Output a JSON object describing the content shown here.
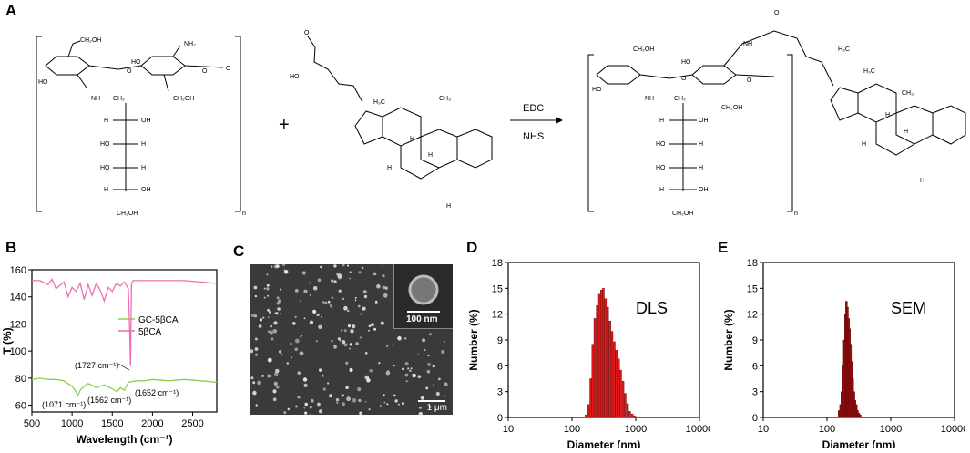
{
  "panels": {
    "A": "A",
    "B": "B",
    "C": "C",
    "D": "D",
    "E": "E"
  },
  "scheme": {
    "reaction_plus": "+",
    "reagent_top": "EDC",
    "reagent_bottom": "NHS",
    "subscript_n": "n",
    "labels": {
      "ch2oh": "CH₂OH",
      "nh2": "NH₂",
      "ho": "HO",
      "oh": "OH",
      "nh": "NH",
      "ch2": "CH₂",
      "h": "H",
      "o": "O",
      "ch3": "CH₃",
      "h3c": "H₃C"
    }
  },
  "sem": {
    "inset_scale": "100 nm",
    "main_scale": "1 μm"
  },
  "chart_data": [
    {
      "type": "line",
      "panel": "B",
      "xlabel": "Wavelength (cm⁻¹)",
      "ylabel": "T (%)",
      "xlim": [
        500,
        2800
      ],
      "ylim": [
        55,
        160
      ],
      "xticks": [
        500,
        1000,
        1500,
        2000,
        2500
      ],
      "yticks": [
        60,
        70,
        80,
        90,
        100,
        110,
        120,
        130,
        140,
        150,
        160
      ],
      "legend_position": "center-right",
      "annotations": [
        "(1727 cm⁻¹)",
        "(1071 cm⁻¹)",
        "(1562 cm⁻¹)",
        "(1652 cm⁻¹)"
      ],
      "series": [
        {
          "name": "GC-5βCA",
          "color": "#8fd14f",
          "x": [
            500,
            600,
            700,
            800,
            900,
            1000,
            1050,
            1071,
            1100,
            1150,
            1200,
            1300,
            1400,
            1500,
            1562,
            1600,
            1652,
            1700,
            1800,
            1900,
            2000,
            2200,
            2400,
            2600,
            2800
          ],
          "y": [
            79,
            80,
            79,
            79,
            78,
            74,
            70,
            67,
            71,
            74,
            76,
            73,
            75,
            72,
            70,
            73,
            71,
            77,
            78,
            78,
            79,
            78,
            79,
            78,
            77
          ]
        },
        {
          "name": "5βCA",
          "color": "#ee6fb1",
          "x": [
            500,
            600,
            700,
            750,
            800,
            900,
            950,
            1000,
            1050,
            1100,
            1150,
            1200,
            1250,
            1300,
            1350,
            1400,
            1450,
            1500,
            1550,
            1600,
            1650,
            1700,
            1715,
            1727,
            1740,
            1760,
            1800,
            1900,
            2000,
            2200,
            2400,
            2600,
            2800
          ],
          "y": [
            152,
            152,
            149,
            153,
            146,
            151,
            140,
            147,
            144,
            150,
            138,
            149,
            141,
            150,
            145,
            137,
            147,
            144,
            150,
            148,
            151,
            146,
            120,
            89,
            150,
            152,
            152,
            152,
            152,
            152,
            152,
            151,
            150
          ]
        }
      ]
    },
    {
      "type": "bar",
      "panel": "D",
      "title": "DLS",
      "xlabel": "Diameter (nm)",
      "ylabel": "Number (%)",
      "xscale": "log",
      "xlim": [
        10,
        10000
      ],
      "ylim": [
        0,
        18
      ],
      "xticks": [
        10,
        100,
        1000,
        10000
      ],
      "yticks": [
        0,
        3,
        6,
        9,
        12,
        15,
        18
      ],
      "color": "#e01b1b",
      "x": [
        160,
        175,
        190,
        205,
        220,
        240,
        260,
        280,
        300,
        325,
        350,
        380,
        410,
        445,
        480,
        520,
        560,
        610,
        660,
        720,
        780,
        850,
        920,
        1000,
        1100
      ],
      "values": [
        0.3,
        1.5,
        4.5,
        8.5,
        11.5,
        13.0,
        14.3,
        14.8,
        15.0,
        13.8,
        12.8,
        11.2,
        10.0,
        8.8,
        7.8,
        6.8,
        5.5,
        4.2,
        2.8,
        1.6,
        0.7,
        0.4,
        0.2,
        0.1,
        0.1
      ]
    },
    {
      "type": "bar",
      "panel": "E",
      "title": "SEM",
      "xlabel": "Diameter (nm)",
      "ylabel": "Number (%)",
      "xscale": "log",
      "xlim": [
        10,
        10000
      ],
      "ylim": [
        0,
        18
      ],
      "xticks": [
        10,
        100,
        1000,
        10000
      ],
      "yticks": [
        0,
        3,
        6,
        9,
        12,
        15,
        18
      ],
      "color": "#8b1010",
      "x": [
        150,
        158,
        165,
        172,
        180,
        188,
        195,
        202,
        210,
        218,
        226,
        235,
        245,
        255,
        265,
        278,
        290,
        305,
        320
      ],
      "values": [
        0.8,
        1.5,
        3.0,
        6.0,
        9.0,
        12.0,
        13.5,
        12.8,
        11.5,
        10.3,
        8.5,
        6.5,
        4.5,
        3.0,
        2.0,
        1.5,
        0.8,
        0.5,
        0.3
      ]
    }
  ]
}
